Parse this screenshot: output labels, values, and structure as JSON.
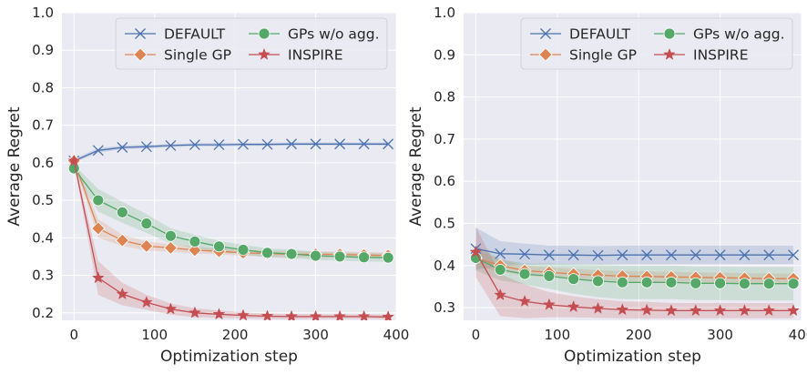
{
  "chart_data": [
    {
      "type": "line",
      "title": "",
      "xlabel": "Optimization step",
      "ylabel": "Average Regret",
      "xlim": [
        -15,
        400
      ],
      "ylim": [
        0.18,
        1.0
      ],
      "xticks": [
        0,
        100,
        200,
        300,
        400
      ],
      "yticks": [
        0.2,
        0.3,
        0.4,
        0.5,
        0.6,
        0.7,
        0.8,
        0.9,
        1.0
      ],
      "grid": true,
      "legend": {
        "placement": "top-right",
        "columns": 2
      },
      "x": [
        0,
        30,
        60,
        90,
        120,
        150,
        180,
        210,
        240,
        270,
        300,
        330,
        360,
        390
      ],
      "series": [
        {
          "name": "DEFAULT",
          "color": "#4c72b0",
          "marker": "x",
          "values": [
            0.605,
            0.633,
            0.641,
            0.643,
            0.646,
            0.648,
            0.648,
            0.649,
            0.649,
            0.65,
            0.65,
            0.65,
            0.65,
            0.65
          ],
          "band": [
            0.005,
            0.006,
            0.005,
            0.005,
            0.004,
            0.004,
            0.004,
            0.004,
            0.004,
            0.004,
            0.004,
            0.004,
            0.004,
            0.004
          ]
        },
        {
          "name": "Single GP",
          "color": "#dd8452",
          "marker": "diamond",
          "values": [
            0.605,
            0.425,
            0.393,
            0.378,
            0.373,
            0.367,
            0.364,
            0.36,
            0.358,
            0.356,
            0.356,
            0.356,
            0.354,
            0.353
          ],
          "band": [
            0.005,
            0.025,
            0.015,
            0.012,
            0.01,
            0.009,
            0.008,
            0.008,
            0.008,
            0.008,
            0.008,
            0.008,
            0.008,
            0.008
          ]
        },
        {
          "name": "GPs w/o agg.",
          "color": "#55a868",
          "marker": "circle",
          "values": [
            0.585,
            0.5,
            0.468,
            0.438,
            0.405,
            0.39,
            0.377,
            0.368,
            0.36,
            0.357,
            0.352,
            0.35,
            0.348,
            0.347
          ],
          "band": [
            0.01,
            0.03,
            0.028,
            0.025,
            0.02,
            0.018,
            0.015,
            0.013,
            0.012,
            0.012,
            0.011,
            0.011,
            0.011,
            0.011
          ]
        },
        {
          "name": "INSPIRE",
          "color": "#c44e52",
          "marker": "star",
          "values": [
            0.605,
            0.293,
            0.25,
            0.228,
            0.21,
            0.2,
            0.196,
            0.193,
            0.191,
            0.19,
            0.19,
            0.19,
            0.19,
            0.189
          ],
          "band": [
            0.005,
            0.045,
            0.03,
            0.02,
            0.015,
            0.012,
            0.01,
            0.008,
            0.007,
            0.007,
            0.006,
            0.006,
            0.006,
            0.006
          ]
        }
      ]
    },
    {
      "type": "line",
      "title": "",
      "xlabel": "Optimization step",
      "ylabel": "Average Regret",
      "xlim": [
        -15,
        400
      ],
      "ylim": [
        0.27,
        1.0
      ],
      "xticks": [
        0,
        100,
        200,
        300,
        400
      ],
      "yticks": [
        0.3,
        0.4,
        0.5,
        0.6,
        0.7,
        0.8,
        0.9,
        1.0
      ],
      "grid": true,
      "legend": {
        "placement": "top-right",
        "columns": 2
      },
      "x": [
        0,
        30,
        60,
        90,
        120,
        150,
        180,
        210,
        240,
        270,
        300,
        330,
        360,
        390
      ],
      "series": [
        {
          "name": "DEFAULT",
          "color": "#4c72b0",
          "marker": "x",
          "values": [
            0.44,
            0.428,
            0.427,
            0.425,
            0.425,
            0.424,
            0.425,
            0.425,
            0.425,
            0.425,
            0.425,
            0.425,
            0.425,
            0.425
          ],
          "band": [
            0.05,
            0.03,
            0.025,
            0.022,
            0.022,
            0.022,
            0.022,
            0.022,
            0.022,
            0.022,
            0.022,
            0.022,
            0.022,
            0.022
          ]
        },
        {
          "name": "Single GP",
          "color": "#dd8452",
          "marker": "diamond",
          "values": [
            0.418,
            0.4,
            0.388,
            0.384,
            0.38,
            0.377,
            0.375,
            0.374,
            0.373,
            0.372,
            0.371,
            0.37,
            0.369,
            0.369
          ],
          "band": [
            0.02,
            0.015,
            0.012,
            0.012,
            0.012,
            0.012,
            0.012,
            0.012,
            0.012,
            0.012,
            0.012,
            0.012,
            0.012,
            0.012
          ]
        },
        {
          "name": "GPs w/o agg.",
          "color": "#55a868",
          "marker": "circle",
          "values": [
            0.418,
            0.39,
            0.38,
            0.375,
            0.368,
            0.363,
            0.36,
            0.36,
            0.36,
            0.358,
            0.358,
            0.357,
            0.357,
            0.357
          ],
          "band": [
            0.03,
            0.025,
            0.025,
            0.03,
            0.035,
            0.038,
            0.04,
            0.04,
            0.04,
            0.04,
            0.04,
            0.04,
            0.04,
            0.04
          ]
        },
        {
          "name": "INSPIRE",
          "color": "#c44e52",
          "marker": "star",
          "values": [
            0.432,
            0.33,
            0.315,
            0.307,
            0.302,
            0.298,
            0.295,
            0.294,
            0.293,
            0.293,
            0.293,
            0.293,
            0.293,
            0.293
          ],
          "band": [
            0.06,
            0.05,
            0.04,
            0.03,
            0.025,
            0.022,
            0.02,
            0.02,
            0.018,
            0.018,
            0.018,
            0.018,
            0.018,
            0.018
          ]
        }
      ]
    }
  ]
}
